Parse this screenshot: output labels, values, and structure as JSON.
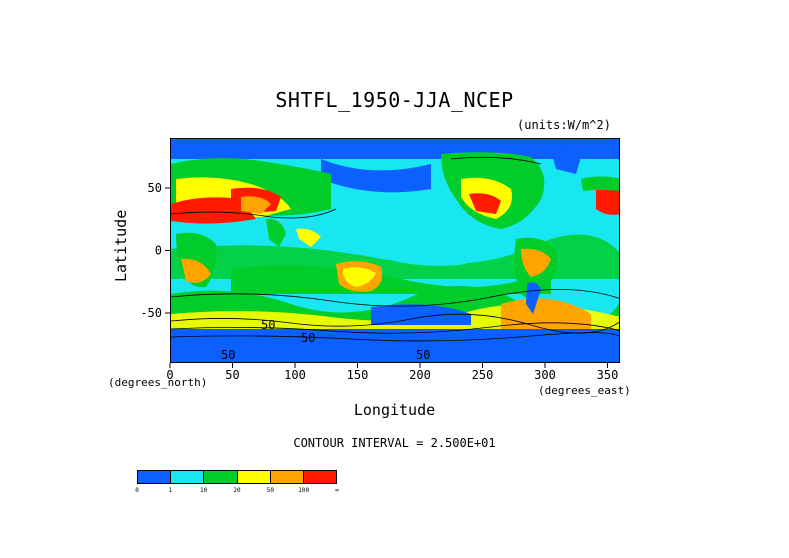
{
  "title": "SHTFL_1950-JJA_NCEP",
  "units_label": "(units:W/m^2)",
  "xaxis": {
    "title": "Longitude",
    "unit": "(degrees_east)",
    "ticks": [
      "0",
      "50",
      "100",
      "150",
      "200",
      "250",
      "300",
      "350"
    ],
    "range": [
      0,
      360
    ]
  },
  "yaxis": {
    "title": "Latitude",
    "unit": "(degrees_north)",
    "ticks": [
      "50",
      "0",
      "-50"
    ],
    "range": [
      -90,
      90
    ]
  },
  "contour_label": "CONTOUR INTERVAL = 2.500E+01",
  "colorbar": {
    "colors": [
      "#0b60ff",
      "#18e6f0",
      "#00cc2a",
      "#ffff00",
      "#ffa500",
      "#ff1a00"
    ],
    "labels": [
      "0",
      "1",
      "10",
      "20",
      "50",
      "100",
      "∞"
    ]
  },
  "map_colors": {
    "ocean_low": "#18e6f0",
    "polar": "#0b60ff",
    "mid": "#00cc2a",
    "warm": "#ffff00",
    "hot": "#ffa500",
    "max": "#ff1a00"
  },
  "contour_labels": [
    "50",
    "50",
    "50",
    "50"
  ]
}
